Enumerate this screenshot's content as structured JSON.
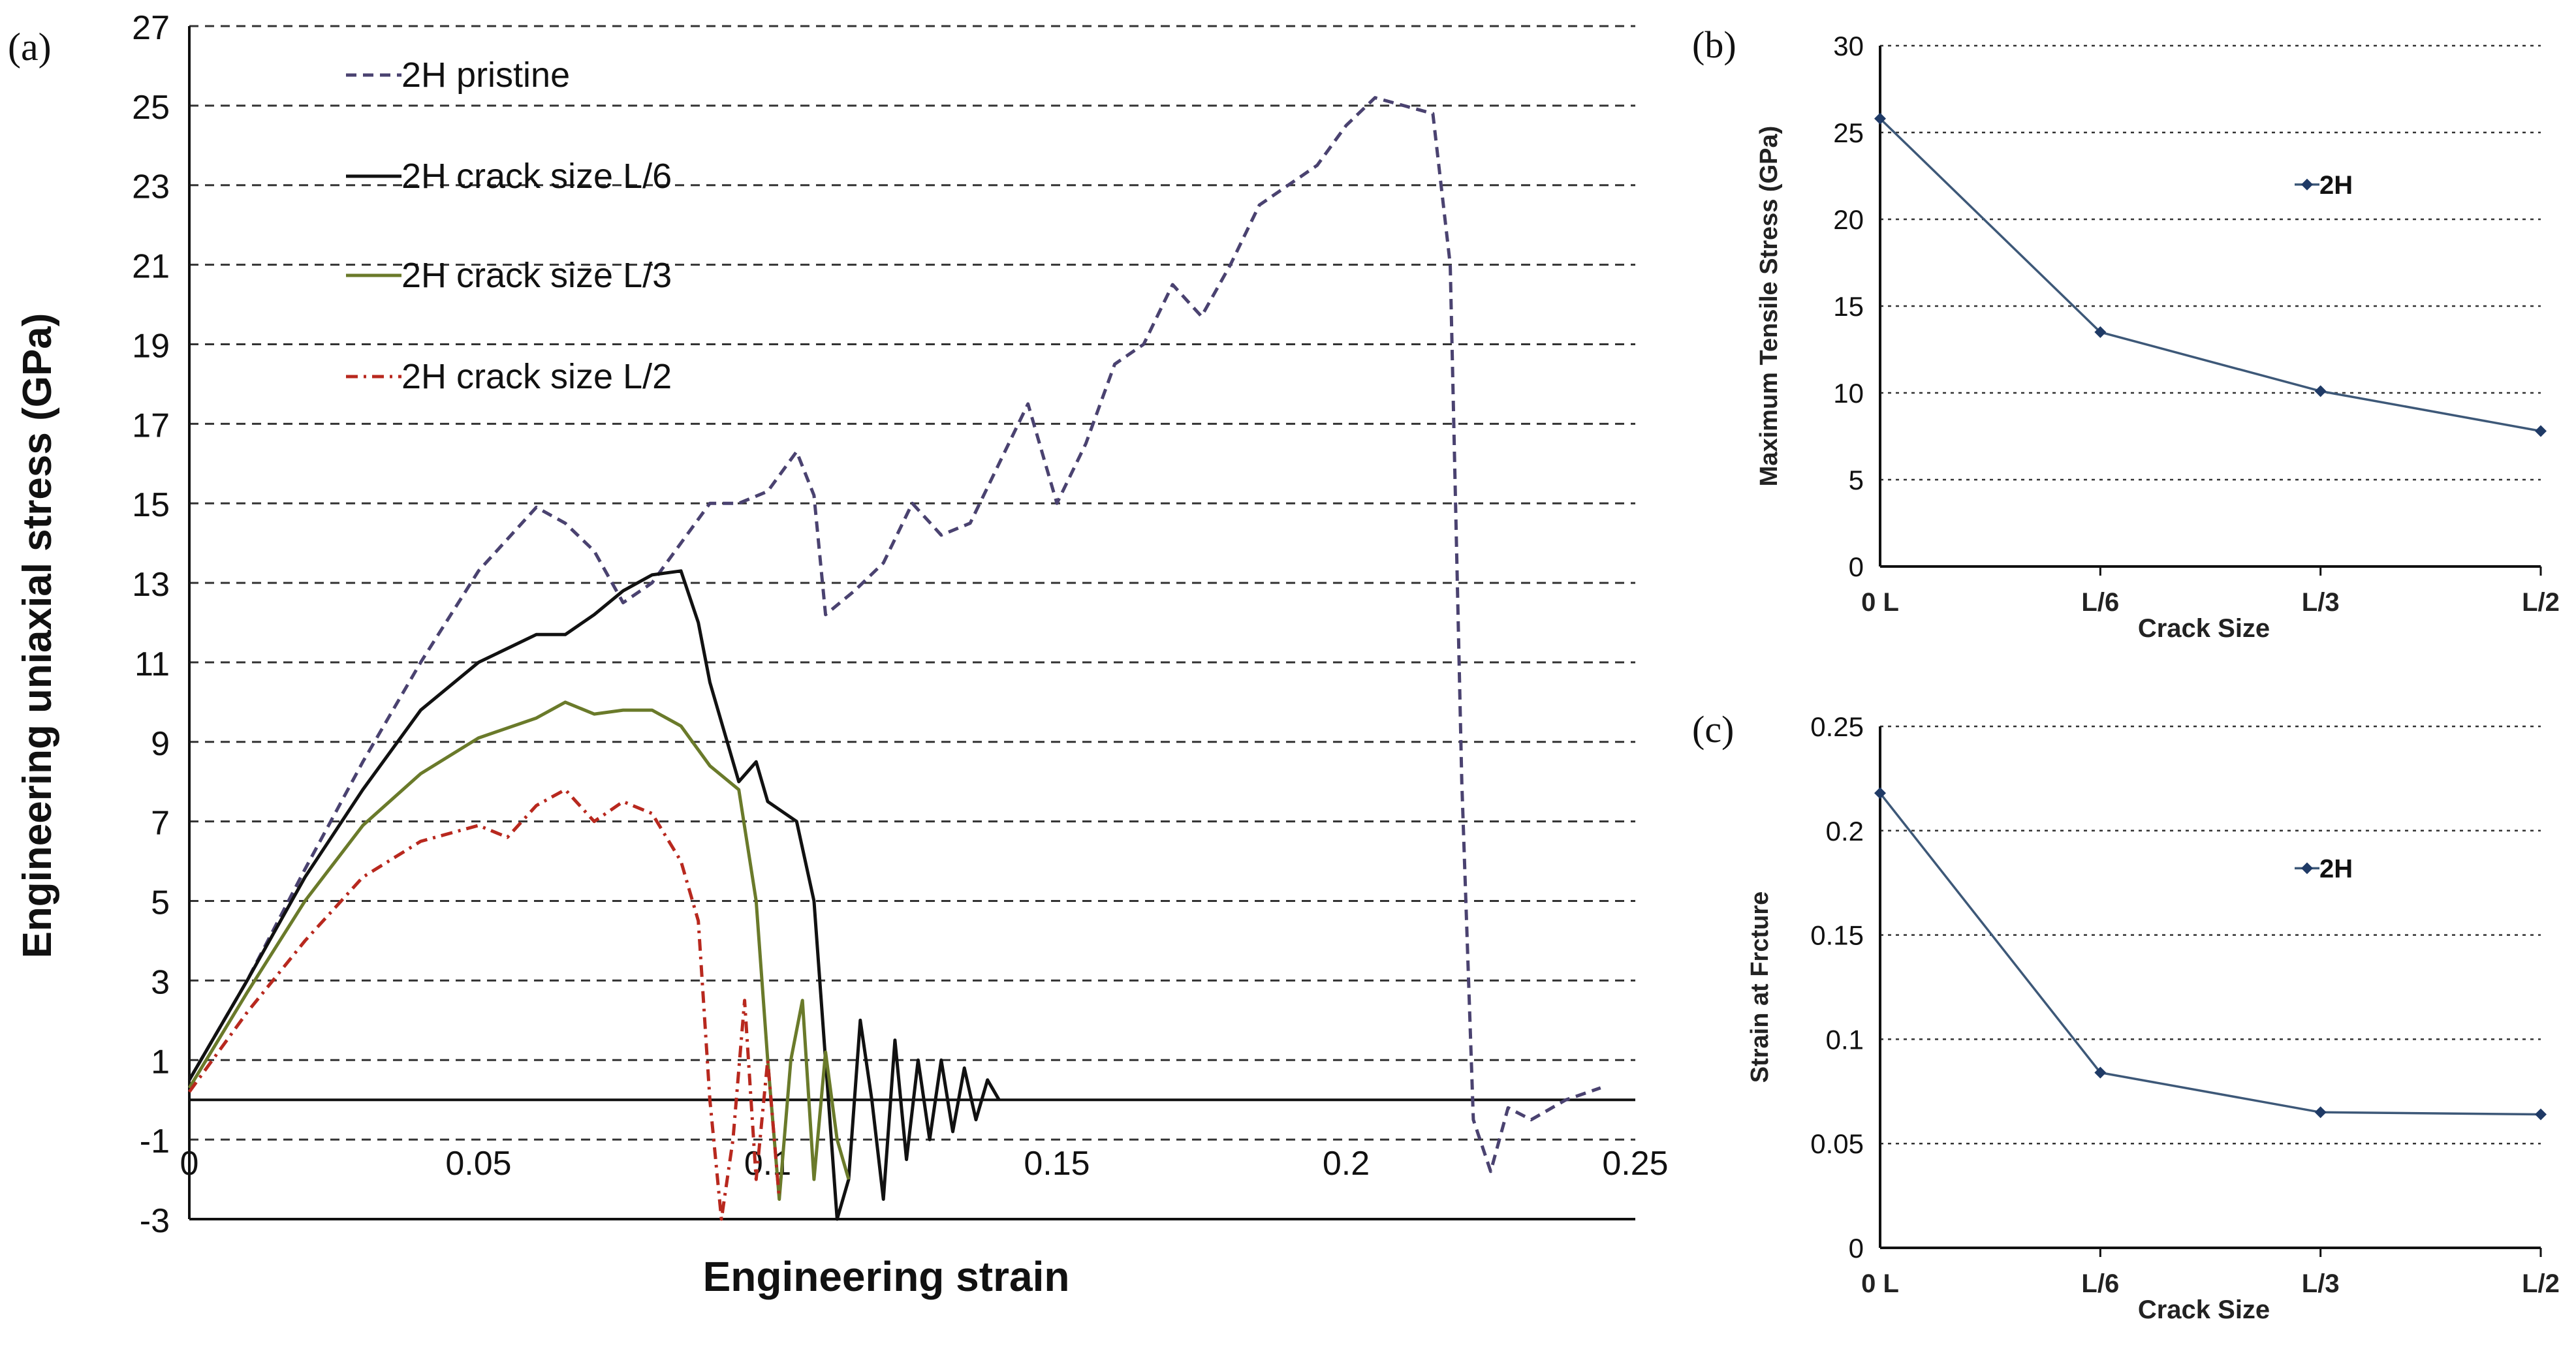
{
  "chart_data": [
    {
      "id": "a",
      "panel_label": "(a)",
      "type": "line",
      "xlabel": "Engineering strain",
      "ylabel": "Engineering uniaxial stress (GPa)",
      "xlim": [
        0,
        0.25
      ],
      "ylim": [
        -3,
        27
      ],
      "x_ticks": [
        0,
        0.05,
        0.1,
        0.15,
        0.2,
        0.25
      ],
      "x_tick_labels": [
        "0",
        "0.05",
        "0.1",
        "0.15",
        "0.2",
        "0.25"
      ],
      "y_ticks": [
        -3,
        -1,
        1,
        3,
        5,
        7,
        9,
        11,
        13,
        15,
        17,
        19,
        21,
        23,
        25,
        27
      ],
      "y_tick_labels": [
        "-3",
        "-1",
        "1",
        "3",
        "5",
        "7",
        "9",
        "11",
        "13",
        "15",
        "17",
        "19",
        "21",
        "23",
        "25",
        "27"
      ],
      "grid": "horizontal dashed",
      "legend_position": "top-left",
      "series": [
        {
          "name": "2H pristine",
          "color": "#4a4270",
          "dash": "dashed",
          "x": [
            0,
            0.01,
            0.02,
            0.03,
            0.04,
            0.05,
            0.06,
            0.065,
            0.07,
            0.075,
            0.08,
            0.085,
            0.09,
            0.095,
            0.1,
            0.105,
            0.108,
            0.11,
            0.115,
            0.12,
            0.125,
            0.13,
            0.135,
            0.14,
            0.145,
            0.15,
            0.155,
            0.16,
            0.165,
            0.17,
            0.175,
            0.18,
            0.185,
            0.19,
            0.195,
            0.2,
            0.205,
            0.21,
            0.215,
            0.218,
            0.22,
            0.222,
            0.225,
            0.228,
            0.232,
            0.238,
            0.244
          ],
          "y": [
            0.5,
            3,
            5.8,
            8.5,
            11,
            13.3,
            14.9,
            14.5,
            13.8,
            12.5,
            13,
            14,
            15,
            15,
            15.3,
            16.3,
            15.2,
            12.2,
            12.8,
            13.5,
            15,
            14.2,
            14.5,
            16,
            17.5,
            15,
            16.5,
            18.5,
            19,
            20.5,
            19.7,
            21,
            22.5,
            23,
            23.5,
            24.5,
            25.2,
            25,
            24.8,
            21,
            8,
            -0.5,
            -1.8,
            -0.2,
            -0.5,
            0,
            0.3
          ]
        },
        {
          "name": "2H crack size L/6",
          "color": "#111111",
          "dash": "solid",
          "x": [
            0,
            0.01,
            0.02,
            0.03,
            0.04,
            0.05,
            0.06,
            0.065,
            0.07,
            0.075,
            0.08,
            0.085,
            0.088,
            0.09,
            0.093,
            0.095,
            0.098,
            0.1,
            0.103,
            0.105,
            0.108,
            0.11,
            0.112,
            0.114,
            0.116,
            0.118,
            0.12,
            0.122,
            0.124,
            0.126,
            0.128,
            0.13,
            0.132,
            0.134,
            0.136,
            0.138,
            0.14
          ],
          "y": [
            0.5,
            3,
            5.6,
            7.8,
            9.8,
            11,
            11.7,
            11.7,
            12.2,
            12.8,
            13.2,
            13.3,
            12,
            10.5,
            9,
            8,
            8.5,
            7.5,
            7.2,
            7,
            5,
            1,
            -3,
            -2,
            2,
            0,
            -2.5,
            1.5,
            -1.5,
            1,
            -1,
            1,
            -0.8,
            0.8,
            -0.5,
            0.5,
            0
          ]
        },
        {
          "name": "2H crack size L/3",
          "color": "#6a7a2a",
          "dash": "solid",
          "x": [
            0,
            0.01,
            0.02,
            0.03,
            0.04,
            0.05,
            0.06,
            0.065,
            0.07,
            0.075,
            0.08,
            0.085,
            0.09,
            0.095,
            0.098,
            0.1,
            0.102,
            0.104,
            0.106,
            0.108,
            0.11,
            0.112,
            0.114
          ],
          "y": [
            0.3,
            2.7,
            5,
            6.9,
            8.2,
            9.1,
            9.6,
            10,
            9.7,
            9.8,
            9.8,
            9.4,
            8.4,
            7.8,
            5,
            1,
            -2.5,
            1,
            2.5,
            -2,
            1.2,
            -1,
            -2
          ]
        },
        {
          "name": "2H crack size L/2",
          "color": "#b8281e",
          "dash": "dash-dot",
          "x": [
            0,
            0.01,
            0.02,
            0.03,
            0.04,
            0.05,
            0.055,
            0.06,
            0.065,
            0.07,
            0.075,
            0.08,
            0.085,
            0.088,
            0.09,
            0.092,
            0.094,
            0.096,
            0.098,
            0.1,
            0.102
          ],
          "y": [
            0.2,
            2.2,
            4,
            5.6,
            6.5,
            6.9,
            6.6,
            7.4,
            7.8,
            7,
            7.5,
            7.2,
            6,
            4.5,
            0,
            -3,
            -1,
            2.5,
            -2,
            1,
            -2.5
          ]
        }
      ]
    },
    {
      "id": "b",
      "panel_label": "(b)",
      "type": "line",
      "xlabel": "Crack Size",
      "ylabel": "Maximum Tensile Stress (GPa)",
      "categories": [
        "0 L",
        "L/6",
        "L/3",
        "L/2"
      ],
      "ylim": [
        0,
        30
      ],
      "y_ticks": [
        0,
        5,
        10,
        15,
        20,
        25,
        30
      ],
      "y_tick_labels": [
        "0",
        "5",
        "10",
        "15",
        "20",
        "25",
        "30"
      ],
      "grid": "horizontal dotted",
      "legend_position": "right",
      "series": [
        {
          "name": "2H",
          "color": "#3d5878",
          "marker_color": "#1f3a66",
          "values": [
            25.8,
            13.5,
            10.1,
            7.8
          ]
        }
      ]
    },
    {
      "id": "c",
      "panel_label": "(c)",
      "type": "line",
      "xlabel": "Crack Size",
      "ylabel": "Strain at  Frcture",
      "categories": [
        "0 L",
        "L/6",
        "L/3",
        "L/2"
      ],
      "ylim": [
        0,
        0.25
      ],
      "y_ticks": [
        0,
        0.05,
        0.1,
        0.15,
        0.2,
        0.25
      ],
      "y_tick_labels": [
        "0",
        "0.05",
        "0.1",
        "0.15",
        "0.2",
        "0.25"
      ],
      "grid": "horizontal dotted",
      "legend_position": "right",
      "series": [
        {
          "name": "2H",
          "color": "#3d5878",
          "marker_color": "#1f3a66",
          "values": [
            0.218,
            0.084,
            0.065,
            0.064
          ]
        }
      ]
    }
  ]
}
